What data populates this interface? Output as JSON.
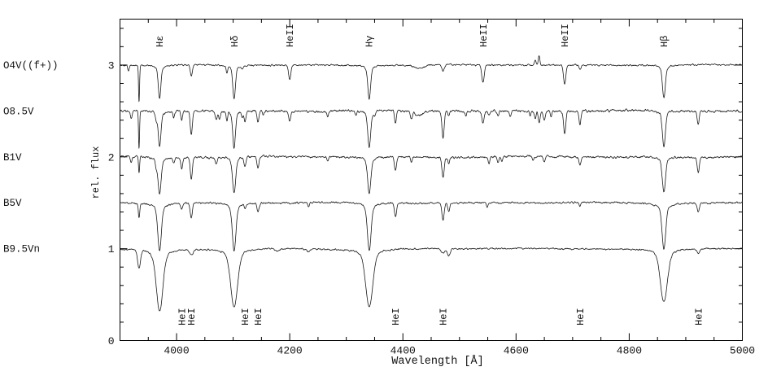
{
  "figure": {
    "title": "",
    "description": "Stacked optical spectra of OB dwarf stars with hydrogen and helium line identifications"
  },
  "chart_data": {
    "type": "line",
    "title": "",
    "xlabel": "Wavelength [Å]",
    "ylabel": "rel. flux",
    "xlim": [
      3900,
      5000
    ],
    "ylim": [
      0,
      3.5
    ],
    "grid": false,
    "x_major_ticks": [
      4000,
      4200,
      4400,
      4600,
      4800,
      5000
    ],
    "x_minor_step": 50,
    "y_major_ticks": [
      0,
      1,
      2,
      3
    ],
    "y_minor_step": 0.2,
    "legend_position": "left-margin",
    "top_line_labels": [
      {
        "label": "Hε",
        "wavelength": 3970
      },
      {
        "label": "Hδ",
        "wavelength": 4102
      },
      {
        "label": "HeII",
        "wavelength": 4200
      },
      {
        "label": "Hγ",
        "wavelength": 4340
      },
      {
        "label": "HeII",
        "wavelength": 4542
      },
      {
        "label": "HeII",
        "wavelength": 4686
      },
      {
        "label": "Hβ",
        "wavelength": 4861
      }
    ],
    "bottom_line_labels": [
      {
        "label": "HeI",
        "wavelength": 4009
      },
      {
        "label": "HeI",
        "wavelength": 4026
      },
      {
        "label": "HeI",
        "wavelength": 4121
      },
      {
        "label": "HeI",
        "wavelength": 4144
      },
      {
        "label": "HeI",
        "wavelength": 4387
      },
      {
        "label": "HeI",
        "wavelength": 4471
      },
      {
        "label": "HeI",
        "wavelength": 4713
      },
      {
        "label": "HeI",
        "wavelength": 4922
      }
    ],
    "line_entry_format": "[wavelength_A, depth_rel_flux, gaussian_sigma_A, optional_lorentz_wing_A]",
    "emission_entry_format": "[wavelength_A, height_rel_flux, gaussian_sigma_A]",
    "series": [
      {
        "name": "O4V((f+))",
        "continuum": 3.0,
        "noise": 0.006,
        "ripple": 0.004,
        "seed": 11,
        "absorption": [
          [
            3915,
            0.06,
            1.3
          ],
          [
            3933.7,
            0.4,
            0.9
          ],
          [
            3970,
            0.36,
            2.2,
            5
          ],
          [
            4026,
            0.12,
            1.8
          ],
          [
            4089,
            0.07,
            1.5
          ],
          [
            4101.7,
            0.37,
            2.2,
            5
          ],
          [
            4116,
            0.04,
            1.5
          ],
          [
            4200,
            0.16,
            2.0
          ],
          [
            4340.5,
            0.37,
            2.4,
            5
          ],
          [
            4428,
            0.04,
            8
          ],
          [
            4471,
            0.07,
            2.0
          ],
          [
            4541.6,
            0.19,
            2.2
          ],
          [
            4686,
            0.21,
            2.0
          ],
          [
            4713,
            0.05,
            1.8
          ],
          [
            4861.3,
            0.36,
            2.4,
            5
          ]
        ],
        "emission": [
          [
            4634,
            0.05,
            1.4
          ],
          [
            4640.6,
            0.1,
            1.4
          ]
        ]
      },
      {
        "name": "O8.5V",
        "continuum": 2.5,
        "noise": 0.009,
        "ripple": 0.006,
        "seed": 22,
        "absorption": [
          [
            3920,
            0.08,
            1.4
          ],
          [
            3933.7,
            0.42,
            0.9
          ],
          [
            3964,
            0.08,
            1.5
          ],
          [
            3970,
            0.4,
            2.2,
            5
          ],
          [
            3995,
            0.07,
            1.5
          ],
          [
            4009,
            0.1,
            1.6
          ],
          [
            4026,
            0.26,
            1.8
          ],
          [
            4070,
            0.1,
            1.8
          ],
          [
            4076,
            0.09,
            1.5
          ],
          [
            4089,
            0.1,
            1.5
          ],
          [
            4101.7,
            0.4,
            2.2,
            5
          ],
          [
            4116,
            0.07,
            1.5
          ],
          [
            4121,
            0.1,
            1.6
          ],
          [
            4144,
            0.12,
            1.7
          ],
          [
            4153,
            0.05,
            1.4
          ],
          [
            4200,
            0.11,
            1.9
          ],
          [
            4267,
            0.06,
            1.5
          ],
          [
            4317,
            0.05,
            1.5
          ],
          [
            4340.5,
            0.4,
            2.4,
            5
          ],
          [
            4350,
            0.05,
            1.5
          ],
          [
            4387,
            0.13,
            1.7
          ],
          [
            4415,
            0.08,
            1.6
          ],
          [
            4428,
            0.05,
            7
          ],
          [
            4471,
            0.3,
            2.0
          ],
          [
            4481,
            0.05,
            1.5
          ],
          [
            4511,
            0.05,
            1.5
          ],
          [
            4541.6,
            0.13,
            2.0
          ],
          [
            4552,
            0.06,
            1.5
          ],
          [
            4568,
            0.05,
            1.5
          ],
          [
            4590,
            0.05,
            1.5
          ],
          [
            4625,
            0.05,
            1.4
          ],
          [
            4634,
            0.09,
            1.5
          ],
          [
            4641,
            0.12,
            1.6
          ],
          [
            4650,
            0.1,
            1.8
          ],
          [
            4662,
            0.06,
            1.5
          ],
          [
            4686,
            0.25,
            1.9
          ],
          [
            4713,
            0.14,
            1.7
          ],
          [
            4861.3,
            0.4,
            2.4,
            5
          ],
          [
            4922,
            0.15,
            1.8
          ]
        ],
        "emission": []
      },
      {
        "name": "B1V",
        "continuum": 2.0,
        "noise": 0.008,
        "ripple": 0.008,
        "seed": 33,
        "absorption": [
          [
            3920,
            0.07,
            1.4
          ],
          [
            3933.7,
            0.17,
            1.0
          ],
          [
            3964,
            0.07,
            1.5
          ],
          [
            3970,
            0.4,
            2.6,
            6
          ],
          [
            3995,
            0.06,
            1.5
          ],
          [
            4009,
            0.12,
            1.7
          ],
          [
            4026,
            0.23,
            1.9
          ],
          [
            4070,
            0.07,
            1.7
          ],
          [
            4101.7,
            0.4,
            2.6,
            6
          ],
          [
            4121,
            0.1,
            1.7
          ],
          [
            4144,
            0.13,
            1.8
          ],
          [
            4267,
            0.05,
            1.5
          ],
          [
            4340.5,
            0.4,
            2.7,
            6
          ],
          [
            4387,
            0.15,
            1.8
          ],
          [
            4415,
            0.05,
            1.5
          ],
          [
            4471,
            0.22,
            2.0
          ],
          [
            4481,
            0.07,
            1.5
          ],
          [
            4552,
            0.08,
            1.6
          ],
          [
            4568,
            0.06,
            1.6
          ],
          [
            4575,
            0.05,
            1.5
          ],
          [
            4630,
            0.05,
            1.5
          ],
          [
            4650,
            0.06,
            1.6
          ],
          [
            4713,
            0.09,
            1.7
          ],
          [
            4861.3,
            0.38,
            2.7,
            6
          ],
          [
            4922,
            0.16,
            1.9
          ]
        ],
        "emission": []
      },
      {
        "name": "B5V",
        "continuum": 1.5,
        "noise": 0.007,
        "ripple": 0.006,
        "seed": 44,
        "absorption": [
          [
            3933.7,
            0.16,
            1.3
          ],
          [
            3970,
            0.52,
            3.0,
            7
          ],
          [
            4009,
            0.06,
            1.7
          ],
          [
            4026,
            0.16,
            2.0
          ],
          [
            4101.7,
            0.52,
            3.0,
            7
          ],
          [
            4121,
            0.05,
            1.6
          ],
          [
            4144,
            0.09,
            1.8
          ],
          [
            4233,
            0.04,
            1.5
          ],
          [
            4340.5,
            0.52,
            3.1,
            7
          ],
          [
            4387,
            0.15,
            1.8
          ],
          [
            4471,
            0.19,
            1.9
          ],
          [
            4481,
            0.1,
            1.6
          ],
          [
            4549,
            0.04,
            1.5
          ],
          [
            4713,
            0.04,
            1.6
          ],
          [
            4861.3,
            0.5,
            3.1,
            7
          ],
          [
            4922,
            0.1,
            1.8
          ]
        ],
        "emission": []
      },
      {
        "name": "B9.5Vn",
        "continuum": 1.0,
        "noise": 0.006,
        "ripple": 0.005,
        "seed": 55,
        "absorption": [
          [
            3933.7,
            0.2,
            2.5
          ],
          [
            3970,
            0.68,
            5.5,
            12
          ],
          [
            4026,
            0.06,
            3.0
          ],
          [
            4101.7,
            0.64,
            5.8,
            12
          ],
          [
            4178,
            0.03,
            3.0
          ],
          [
            4233,
            0.03,
            3.0
          ],
          [
            4340.5,
            0.63,
            6.0,
            12
          ],
          [
            4471,
            0.05,
            3.0
          ],
          [
            4481,
            0.08,
            2.5
          ],
          [
            4861.3,
            0.58,
            6.0,
            12
          ],
          [
            4922,
            0.05,
            2.5
          ]
        ],
        "emission": []
      }
    ]
  }
}
